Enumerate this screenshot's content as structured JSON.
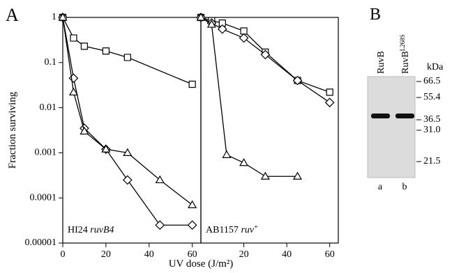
{
  "panel_labels": [
    "A",
    "B"
  ],
  "chart_data": [
    {
      "type": "line",
      "yscale": "log",
      "ylabel": "Fraction surviving",
      "xlabel": "UV dose (J/m²)",
      "ylim": [
        1e-05,
        1
      ],
      "yticks": [
        1,
        0.1,
        0.01,
        0.001,
        0.0001,
        1e-05
      ],
      "xlim": [
        0,
        64
      ],
      "xticks": [
        0,
        20,
        40,
        60
      ],
      "annotation": {
        "strain": "HI24",
        "allele": "ruvB4"
      },
      "series": [
        {
          "marker": "square",
          "color": "#000000",
          "x": [
            0,
            5,
            10,
            20,
            30,
            60
          ],
          "values": [
            1,
            0.35,
            0.23,
            0.18,
            0.13,
            0.033
          ]
        },
        {
          "marker": "diamond",
          "color": "#000000",
          "x": [
            0,
            5,
            10,
            20,
            30,
            45,
            60
          ],
          "values": [
            1,
            0.045,
            0.0035,
            0.0012,
            0.00025,
            2.5e-05,
            2.5e-05
          ]
        },
        {
          "marker": "triangle",
          "color": "#000000",
          "x": [
            0,
            5,
            10,
            20,
            30,
            45,
            60
          ],
          "values": [
            1,
            0.022,
            0.003,
            0.0012,
            0.001,
            0.00025,
            7e-05
          ]
        }
      ]
    },
    {
      "type": "line",
      "yscale": "log",
      "ylim": [
        1e-05,
        1
      ],
      "xlim": [
        0,
        64
      ],
      "xticks": [
        20,
        40,
        60
      ],
      "annotation": {
        "strain": "AB1157",
        "allele": "ruv",
        "superscript": "+"
      },
      "series": [
        {
          "marker": "square",
          "color": "#000000",
          "x": [
            0,
            5,
            10,
            20,
            30,
            45,
            60
          ],
          "values": [
            1,
            0.85,
            0.75,
            0.5,
            0.17,
            0.04,
            0.022
          ]
        },
        {
          "marker": "diamond",
          "color": "#000000",
          "x": [
            0,
            5,
            10,
            20,
            30,
            45,
            60
          ],
          "values": [
            1,
            0.75,
            0.55,
            0.35,
            0.15,
            0.04,
            0.013
          ]
        },
        {
          "marker": "triangle",
          "color": "#000000",
          "x": [
            0,
            5,
            12,
            20,
            30,
            45
          ],
          "values": [
            1,
            0.7,
            0.0009,
            0.0006,
            0.0003,
            0.0003
          ]
        }
      ]
    }
  ],
  "gel": {
    "unit": "kDa",
    "lanes": [
      {
        "label": "RuvB",
        "lane": "a"
      },
      {
        "label": "RuvB",
        "superscript": "L268S",
        "lane": "b"
      }
    ],
    "markers": [
      "66.5",
      "55.4",
      "36.5",
      "31.0",
      "21.5"
    ]
  }
}
